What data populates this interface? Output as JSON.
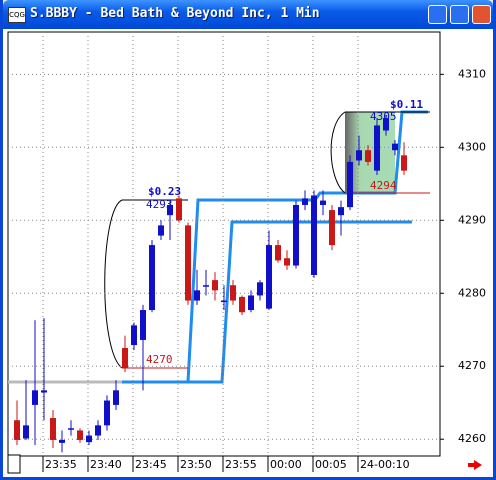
{
  "chart_data": {
    "type": "candlestick",
    "title": "S.BBBY - Bed Bath & Beyond Inc, 1 Min",
    "categories": [
      null,
      null,
      null,
      "23:35",
      null,
      null,
      null,
      null,
      "23:40",
      null,
      null,
      null,
      null,
      "23:45",
      null,
      null,
      null,
      null,
      "23:50",
      null,
      null,
      null,
      null,
      "23:55",
      null,
      null,
      null,
      null,
      "00:00",
      null,
      null,
      null,
      null,
      "00:05",
      null,
      null,
      null,
      null,
      "24-00:10",
      null,
      null,
      null,
      null,
      null
    ],
    "open": [
      4262.6,
      4260.1,
      4264.7,
      4266.4,
      4262.9,
      4259.5,
      4261.5,
      4261.2,
      4259.6,
      4260.5,
      4261.9,
      4264.7,
      4272.5,
      4272.9,
      4273.6,
      4277.7,
      4287.9,
      4290.7,
      4293.0,
      4289.3,
      4279.0,
      4281.1,
      4281.8,
      4279.0,
      4281.1,
      4279.5,
      4277.7,
      4279.7,
      4277.9,
      4286.6,
      4284.8,
      4283.8,
      4292.1,
      4282.5,
      4292.1,
      4291.4,
      4290.7,
      4291.8,
      4298.2,
      4299.6,
      4296.8,
      4302.3,
      4299.6,
      4298.9
    ],
    "high": [
      4265.3,
      4268.1,
      4276.3,
      4276.6,
      4264.0,
      4261.2,
      4262.6,
      4261.5,
      4261.2,
      4262.6,
      4266.0,
      4268.1,
      4274.2,
      4276.0,
      4278.4,
      4287.3,
      4290.0,
      4292.7,
      4293.4,
      4289.7,
      4283.2,
      4283.2,
      4282.9,
      4281.1,
      4281.8,
      4279.7,
      4280.4,
      4281.8,
      4288.6,
      4287.3,
      4285.9,
      4292.7,
      4294.1,
      4294.1,
      4294.1,
      4292.1,
      4292.7,
      4298.9,
      4301.6,
      4300.3,
      4304.0,
      4304.4,
      4301.0,
      4300.7
    ],
    "low": [
      4259.2,
      4259.9,
      4259.2,
      4262.6,
      4258.8,
      4258.2,
      4260.5,
      4259.5,
      4259.2,
      4259.9,
      4261.2,
      4264.0,
      4269.2,
      4272.2,
      4266.7,
      4277.4,
      4287.3,
      4287.3,
      4289.7,
      4278.4,
      4278.4,
      4279.7,
      4279.0,
      4277.7,
      4278.4,
      4277.0,
      4277.4,
      4279.0,
      4277.7,
      4284.2,
      4283.2,
      4283.4,
      4291.4,
      4282.1,
      4290.7,
      4285.9,
      4287.9,
      4291.4,
      4297.5,
      4297.5,
      4296.2,
      4301.6,
      4298.9,
      4296.2
    ],
    "close": [
      4259.9,
      4261.9,
      4266.7,
      4266.7,
      4259.9,
      4259.9,
      4261.5,
      4259.9,
      4260.5,
      4261.9,
      4265.3,
      4266.7,
      4269.7,
      4275.6,
      4277.7,
      4286.6,
      4289.3,
      4292.1,
      4290.0,
      4279.0,
      4280.4,
      4281.1,
      4280.4,
      4279.0,
      4279.0,
      4277.4,
      4279.7,
      4281.5,
      4286.6,
      4284.5,
      4283.8,
      4292.1,
      4293.0,
      4293.4,
      4292.7,
      4286.6,
      4291.8,
      4298.0,
      4299.6,
      4298.0,
      4303.0,
      4304.0,
      4300.5,
      4296.8
    ],
    "up_color": "#1010c8",
    "down_color": "#c81818",
    "ylim": [
      4257.7,
      4315.8
    ],
    "yticks": [
      4260,
      4270,
      4280,
      4290,
      4300,
      4310
    ],
    "grid": true,
    "annotations": [
      "$0.23",
      "4293",
      "4270",
      "$0.11",
      "4305",
      "4294"
    ]
  }
}
